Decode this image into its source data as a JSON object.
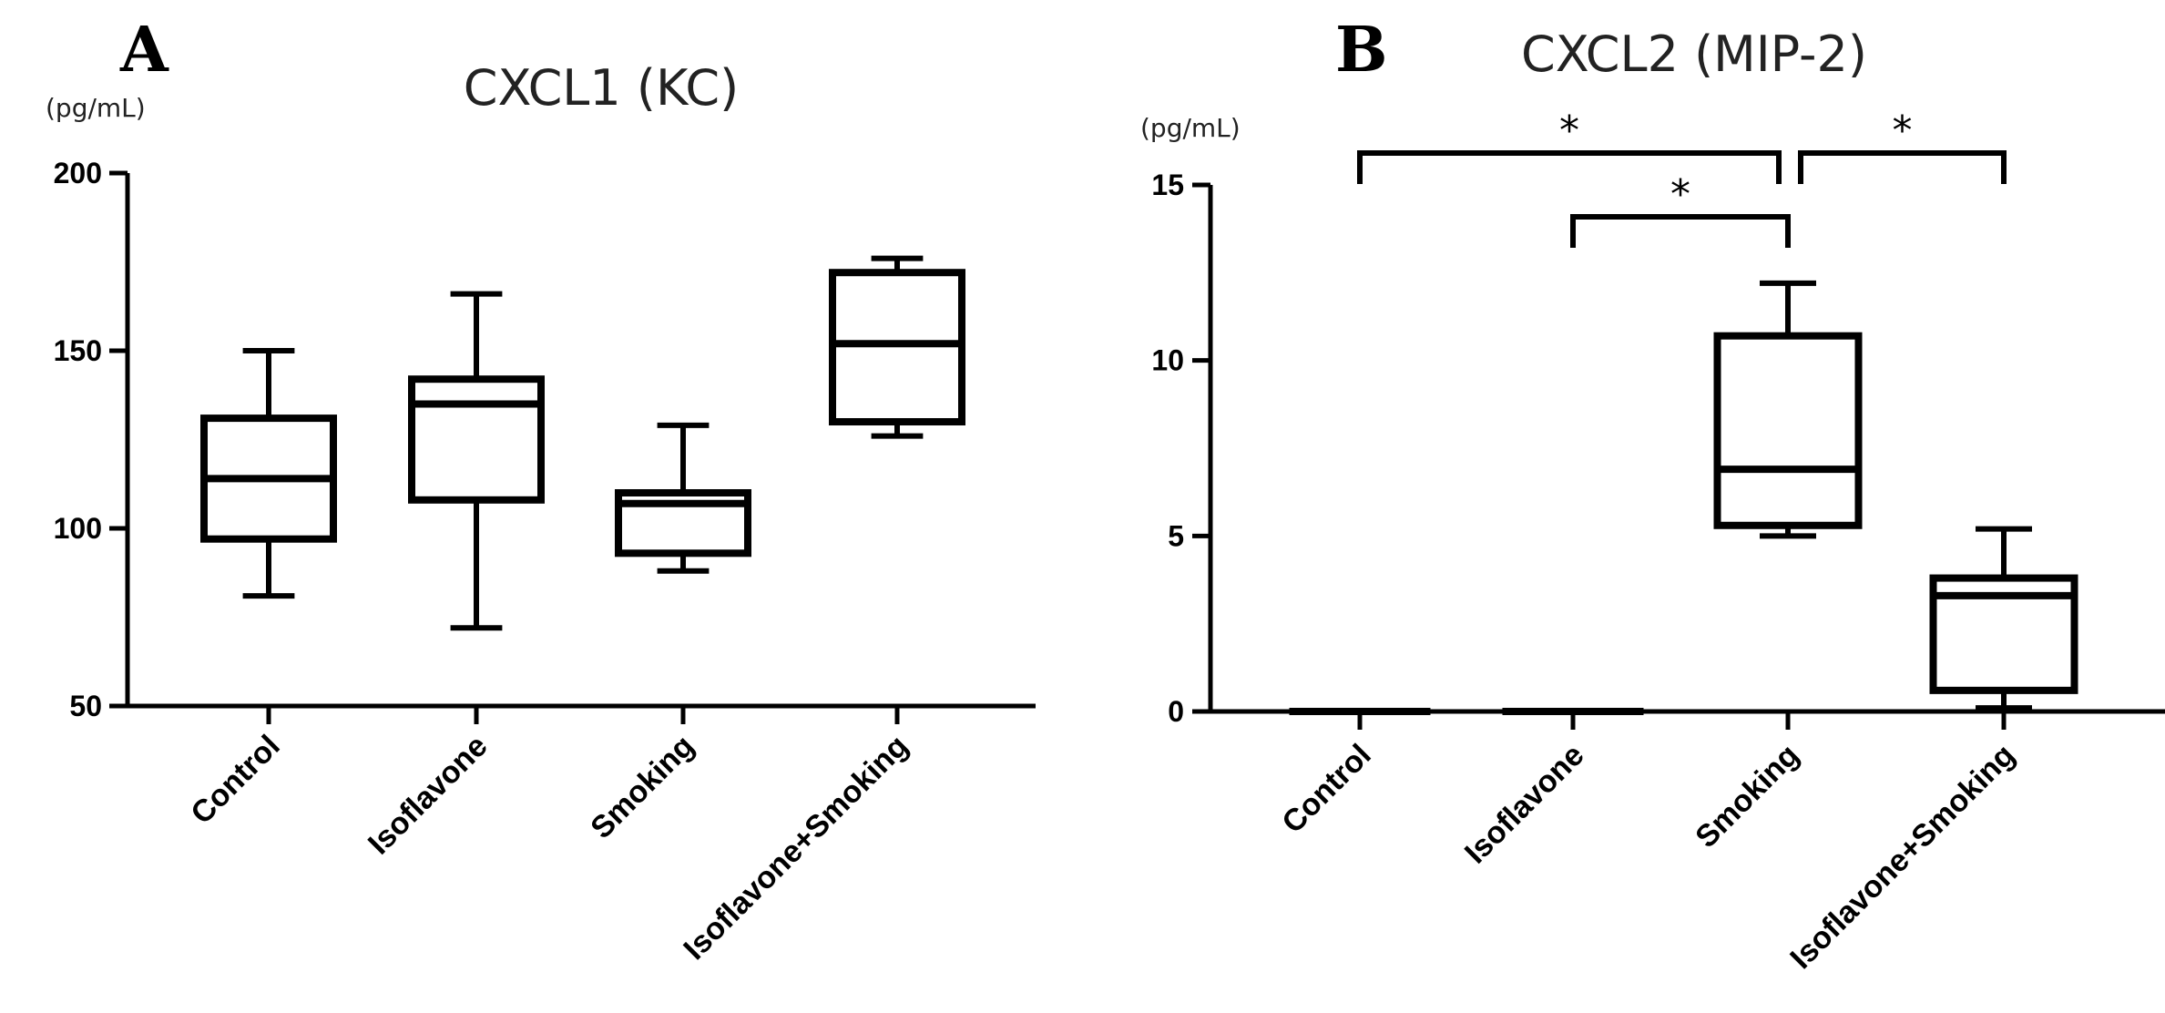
{
  "chart_data": [
    {
      "type": "box",
      "panel_label": "A",
      "title": "CXCL1 (KC)",
      "ylabel": "(pg/mL)",
      "ylim": [
        50,
        200
      ],
      "yticks": [
        "50",
        "100",
        "150",
        "200"
      ],
      "categories": [
        "Control",
        "Isoflavone",
        "Smoking",
        "Isoflavone+Smoking"
      ],
      "boxes": [
        {
          "min": 81,
          "q1": 97,
          "median": 114,
          "q3": 131,
          "max": 150
        },
        {
          "min": 72,
          "q1": 108,
          "median": 135,
          "q3": 142,
          "max": 166
        },
        {
          "min": 88,
          "q1": 93,
          "median": 107,
          "q3": 110,
          "max": 129
        },
        {
          "min": 126,
          "q1": 130,
          "median": 152,
          "q3": 172,
          "max": 176
        }
      ],
      "significance": []
    },
    {
      "type": "box",
      "panel_label": "B",
      "title": "CXCL2 (MIP-2)",
      "ylabel": "(pg/mL)",
      "ylim": [
        0,
        15
      ],
      "yticks": [
        "0",
        "5",
        "10",
        "15"
      ],
      "categories": [
        "Control",
        "Isoflavone",
        "Smoking",
        "Isoflavone+Smoking"
      ],
      "boxes": [
        {
          "min": 0,
          "q1": 0,
          "median": 0,
          "q3": 0,
          "max": 0
        },
        {
          "min": 0,
          "q1": 0,
          "median": 0,
          "q3": 0,
          "max": 0
        },
        {
          "min": 5.0,
          "q1": 5.3,
          "median": 6.9,
          "q3": 10.7,
          "max": 12.2
        },
        {
          "min": 0.1,
          "q1": 0.6,
          "median": 3.3,
          "q3": 3.8,
          "max": 5.2
        }
      ],
      "significance": [
        {
          "from": 0,
          "to": 2,
          "label": "*"
        },
        {
          "from": 1,
          "to": 2,
          "label": "*"
        },
        {
          "from": 2,
          "to": 3,
          "label": "*"
        }
      ]
    }
  ]
}
